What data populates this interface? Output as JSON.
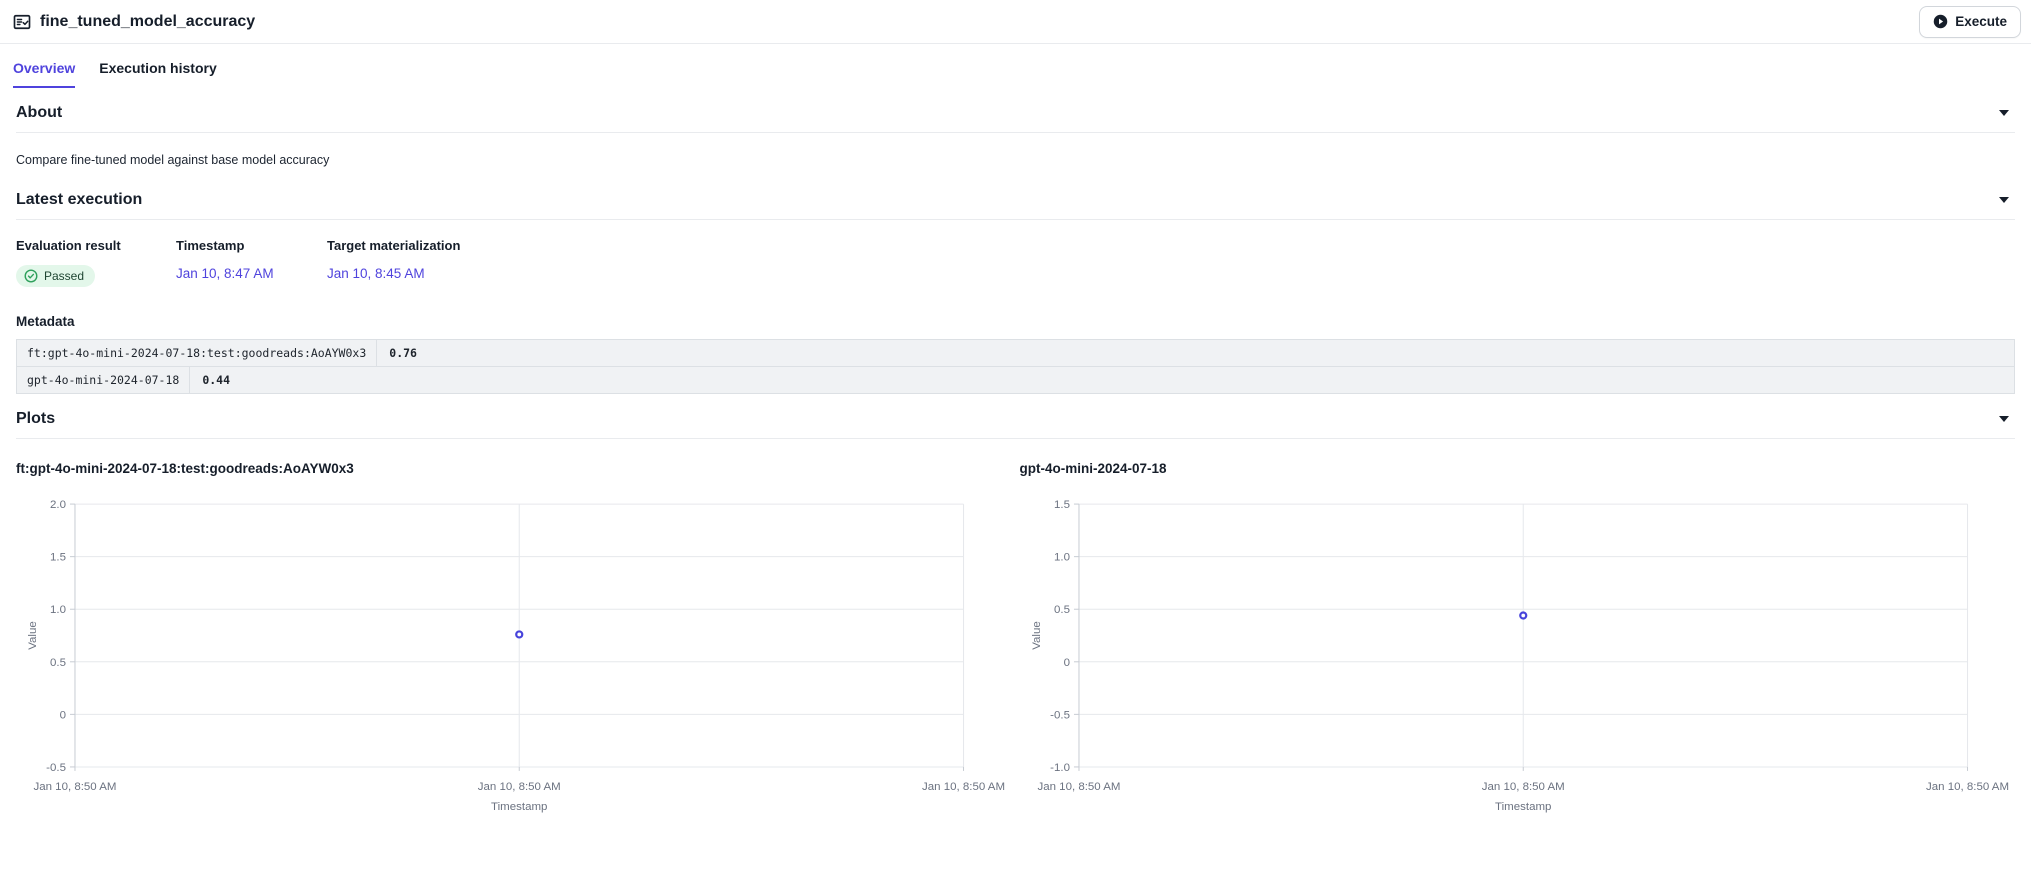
{
  "header": {
    "title": "fine_tuned_model_accuracy",
    "execute_label": "Execute"
  },
  "tabs": [
    {
      "label": "Overview",
      "active": true
    },
    {
      "label": "Execution history",
      "active": false
    }
  ],
  "about": {
    "heading": "About",
    "description": "Compare fine-tuned model against base model accuracy"
  },
  "latest_execution": {
    "heading": "Latest execution",
    "columns": [
      "Evaluation result",
      "Timestamp",
      "Target materialization"
    ],
    "evaluation_result": "Passed",
    "timestamp": "Jan 10, 8:47 AM",
    "target_materialization": "Jan 10, 8:45 AM",
    "metadata_heading": "Metadata",
    "metadata_rows": [
      {
        "key": "ft:gpt-4o-mini-2024-07-18:test:goodreads:AoAYW0x3",
        "value": "0.76"
      },
      {
        "key": "gpt-4o-mini-2024-07-18",
        "value": "0.44"
      }
    ]
  },
  "plots": {
    "heading": "Plots"
  },
  "chart_data": [
    {
      "type": "scatter",
      "title": "ft:gpt-4o-mini-2024-07-18:test:goodreads:AoAYW0x3",
      "xlabel": "Timestamp",
      "ylabel": "Value",
      "ylim": [
        -0.5,
        2.0
      ],
      "y_ticks": [
        "2.0",
        "1.5",
        "1.0",
        "0.5",
        "0",
        "-0.5"
      ],
      "x_tick_labels": [
        "Jan 10, 8:50 AM",
        "Jan 10, 8:50 AM",
        "Jan 10, 8:50 AM"
      ],
      "points": [
        {
          "x_frac": 0.5,
          "y": 0.76,
          "x_label": "Jan 10, 8:50 AM"
        }
      ],
      "marker_color": "#4743db",
      "grid": true,
      "legend": false
    },
    {
      "type": "scatter",
      "title": "gpt-4o-mini-2024-07-18",
      "xlabel": "Timestamp",
      "ylabel": "Value",
      "ylim": [
        -1.0,
        1.5
      ],
      "y_ticks": [
        "1.5",
        "1.0",
        "0.5",
        "0",
        "-0.5",
        "-1.0"
      ],
      "x_tick_labels": [
        "Jan 10, 8:50 AM",
        "Jan 10, 8:50 AM",
        "Jan 10, 8:50 AM"
      ],
      "points": [
        {
          "x_frac": 0.5,
          "y": 0.44,
          "x_label": "Jan 10, 8:50 AM"
        }
      ],
      "marker_color": "#4743db",
      "grid": true,
      "legend": false
    }
  ],
  "colors": {
    "accent": "#4f43dd",
    "link": "#4f43dd",
    "grid": "#e6e8ec",
    "axis": "#c7ccd3",
    "chart_text": "#6b7280",
    "passed_bg": "#e3f7ea",
    "passed_icon": "#2ea05b",
    "passed_text": "#1e4532"
  }
}
